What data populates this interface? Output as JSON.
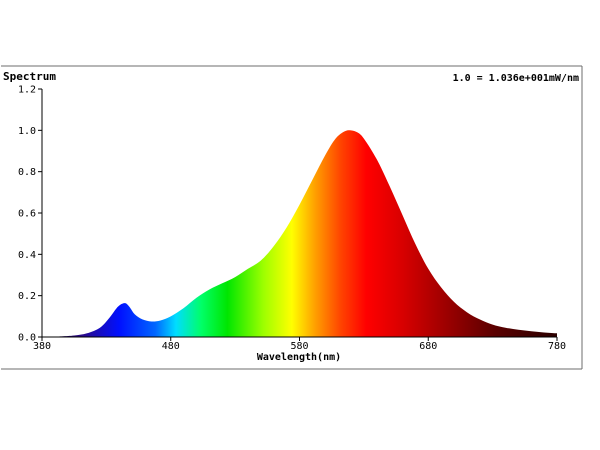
{
  "chart_data": {
    "type": "area",
    "title": "Spectrum",
    "scale_note": "1.0 = 1.036e+001mW/nm",
    "xlabel": "Wavelength(nm)",
    "ylabel": "",
    "xlim": [
      380,
      780
    ],
    "ylim": [
      0,
      1.2
    ],
    "x_ticks": [
      380,
      480,
      580,
      680,
      780
    ],
    "x_tick_labels": [
      "380",
      "480",
      "580",
      "680",
      "780"
    ],
    "y_ticks": [
      0,
      0.2,
      0.4,
      0.6,
      0.8,
      1.0,
      1.2
    ],
    "y_tick_labels": [
      "0.0",
      "0.2",
      "0.4",
      "0.6",
      "0.8",
      "1.0",
      "1.2"
    ],
    "grid": false,
    "fill": "visible-spectrum color gradient",
    "series": [
      {
        "x": [
          380,
          395,
          405,
          415,
          425,
          432,
          438,
          442,
          445,
          448,
          452,
          458,
          465,
          472,
          480,
          490,
          500,
          510,
          520,
          530,
          540,
          550,
          560,
          570,
          580,
          590,
          600,
          608,
          615,
          620,
          625,
          630,
          640,
          650,
          660,
          670,
          680,
          690,
          700,
          710,
          720,
          730,
          740,
          750,
          760,
          770,
          780
        ],
        "values": [
          0.0,
          0.003,
          0.007,
          0.018,
          0.045,
          0.09,
          0.14,
          0.16,
          0.163,
          0.145,
          0.11,
          0.085,
          0.075,
          0.08,
          0.1,
          0.14,
          0.19,
          0.23,
          0.26,
          0.29,
          0.33,
          0.37,
          0.44,
          0.53,
          0.64,
          0.76,
          0.88,
          0.96,
          0.995,
          1.0,
          0.99,
          0.96,
          0.86,
          0.73,
          0.59,
          0.45,
          0.33,
          0.24,
          0.17,
          0.12,
          0.085,
          0.06,
          0.045,
          0.035,
          0.028,
          0.022,
          0.018
        ]
      }
    ]
  },
  "colors": {
    "axis": "#000000",
    "frame": "#6e6e6e",
    "background": "#ffffff"
  }
}
